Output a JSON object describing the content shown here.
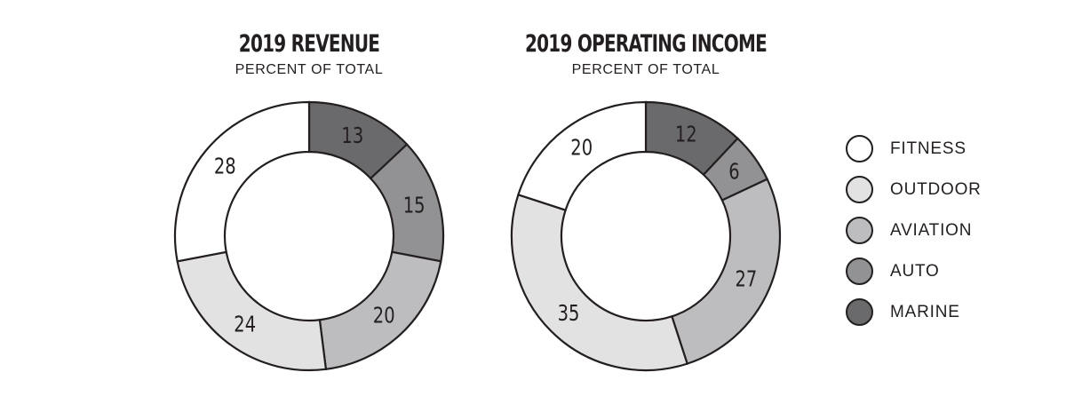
{
  "legend": [
    {
      "label": "FITNESS",
      "color": "#ffffff"
    },
    {
      "label": "OUTDOOR",
      "color": "#e2e2e3"
    },
    {
      "label": "AVIATION",
      "color": "#bdbdbf"
    },
    {
      "label": "AUTO",
      "color": "#929294"
    },
    {
      "label": "MARINE",
      "color": "#6a6a6c"
    }
  ],
  "chart_data": [
    {
      "type": "pie",
      "title": "2019 REVENUE",
      "subtitle": "PERCENT OF TOTAL",
      "slices": [
        {
          "category": "MARINE",
          "value": 13,
          "color": "#6a6a6c"
        },
        {
          "category": "AUTO",
          "value": 15,
          "color": "#929294"
        },
        {
          "category": "AVIATION",
          "value": 20,
          "color": "#bdbdbf"
        },
        {
          "category": "OUTDOOR",
          "value": 24,
          "color": "#e2e2e3"
        },
        {
          "category": "FITNESS",
          "value": 28,
          "color": "#ffffff"
        }
      ]
    },
    {
      "type": "pie",
      "title": "2019 OPERATING INCOME",
      "subtitle": "PERCENT OF TOTAL",
      "slices": [
        {
          "category": "MARINE",
          "value": 12,
          "color": "#6a6a6c"
        },
        {
          "category": "AUTO",
          "value": 6,
          "color": "#929294"
        },
        {
          "category": "AVIATION",
          "value": 27,
          "color": "#bdbdbf"
        },
        {
          "category": "OUTDOOR",
          "value": 35,
          "color": "#e2e2e3"
        },
        {
          "category": "FITNESS",
          "value": 20,
          "color": "#ffffff"
        }
      ]
    }
  ]
}
